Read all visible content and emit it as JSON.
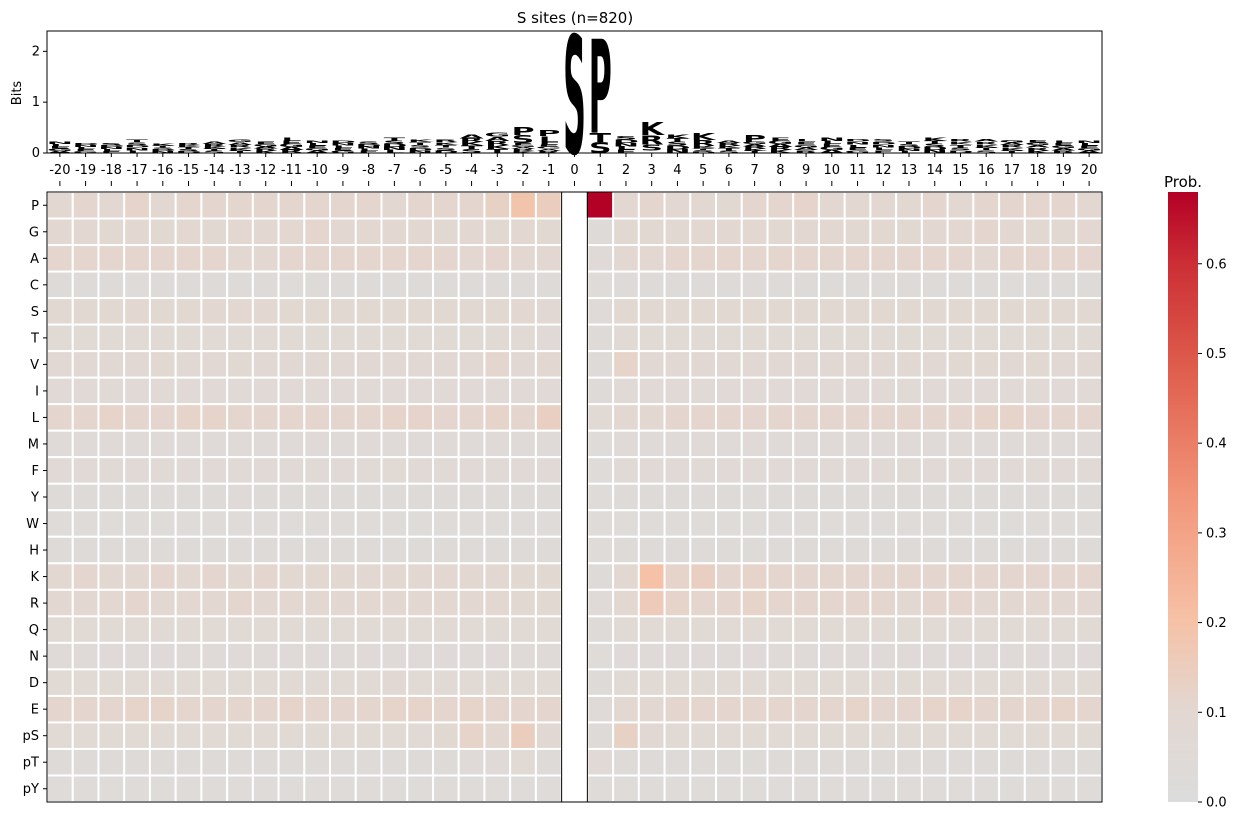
{
  "title": "S sites (n=820)",
  "chart_data": [
    {
      "type": "logo",
      "title": "S sites (n=820)",
      "ylabel": "Bits",
      "ylim": [
        0,
        2.4
      ],
      "yticks": [
        0,
        1,
        2
      ],
      "positions": [
        -20,
        -19,
        -18,
        -17,
        -16,
        -15,
        -14,
        -13,
        -12,
        -11,
        -10,
        -9,
        -8,
        -7,
        -6,
        -5,
        -4,
        -3,
        -2,
        -1,
        0,
        1,
        2,
        3,
        4,
        5,
        6,
        7,
        8,
        9,
        10,
        11,
        12,
        13,
        14,
        15,
        16,
        17,
        18,
        19,
        20
      ],
      "residue_colors": {
        "S": "#8b008b",
        "P": "#000000",
        "K": "#0000ee",
        "R": "#0000ee",
        "A": "#000000",
        "G": "#2e8b57",
        "E": "#e8001c",
        "D": "#e8001c",
        "T": "#cc0044",
        "L": "#ff8c00",
        "N": "#cc00cc"
      },
      "total_bits": [
        0.22,
        0.2,
        0.2,
        0.27,
        0.18,
        0.2,
        0.22,
        0.27,
        0.22,
        0.3,
        0.24,
        0.24,
        0.22,
        0.3,
        0.27,
        0.27,
        0.36,
        0.4,
        0.5,
        0.45,
        2.33,
        2.25,
        0.33,
        0.6,
        0.36,
        0.4,
        0.25,
        0.36,
        0.3,
        0.28,
        0.3,
        0.28,
        0.28,
        0.22,
        0.3,
        0.28,
        0.28,
        0.26,
        0.26,
        0.24,
        0.24
      ],
      "stacks": [
        {
          "position": 0,
          "letters": [
            {
              "letter": "S",
              "bits": 2.33
            }
          ]
        },
        {
          "position": 1,
          "letters": [
            {
              "letter": "S",
              "bits": 0.22
            },
            {
              "letter": "T",
              "bits": 0.18
            },
            {
              "letter": "P",
              "bits": 1.85
            }
          ]
        },
        {
          "position": 3,
          "letters": [
            {
              "letter": "S",
              "bits": 0.12
            },
            {
              "letter": "R",
              "bits": 0.18
            },
            {
              "letter": "K",
              "bits": 0.25
            }
          ]
        },
        {
          "position": 5,
          "letters": [
            {
              "letter": "R",
              "bits": 0.12
            },
            {
              "letter": "K",
              "bits": 0.14
            }
          ]
        },
        {
          "position": 7,
          "letters": [
            {
              "letter": "P",
              "bits": 0.14
            }
          ]
        },
        {
          "position": -2,
          "letters": [
            {
              "letter": "S",
              "bits": 0.15
            },
            {
              "letter": "P",
              "bits": 0.15
            }
          ]
        },
        {
          "position": -1,
          "letters": [
            {
              "letter": "L",
              "bits": 0.12
            },
            {
              "letter": "P",
              "bits": 0.12
            }
          ]
        }
      ]
    },
    {
      "type": "heatmap",
      "colorbar_label": "Prob.",
      "vmin": 0.0,
      "vmax": 0.68,
      "colorbar_ticks": [
        0.0,
        0.1,
        0.2,
        0.3,
        0.4,
        0.5,
        0.6
      ],
      "x": [
        -20,
        -19,
        -18,
        -17,
        -16,
        -15,
        -14,
        -13,
        -12,
        -11,
        -10,
        -9,
        -8,
        -7,
        -6,
        -5,
        -4,
        -3,
        -2,
        -1,
        0,
        1,
        2,
        3,
        4,
        5,
        6,
        7,
        8,
        9,
        10,
        11,
        12,
        13,
        14,
        15,
        16,
        17,
        18,
        19,
        20
      ],
      "y": [
        "P",
        "G",
        "A",
        "C",
        "S",
        "T",
        "V",
        "I",
        "L",
        "M",
        "F",
        "Y",
        "W",
        "H",
        "K",
        "R",
        "Q",
        "N",
        "D",
        "E",
        "pS",
        "pT",
        "pY"
      ],
      "values": [
        [
          0.1,
          0.11,
          0.1,
          0.12,
          0.1,
          0.11,
          0.11,
          0.11,
          0.11,
          0.11,
          0.11,
          0.11,
          0.11,
          0.1,
          0.11,
          0.11,
          0.11,
          0.13,
          0.19,
          0.15,
          null,
          0.68,
          0.1,
          0.11,
          0.1,
          0.1,
          0.09,
          0.11,
          0.11,
          0.12,
          0.1,
          0.1,
          0.1,
          0.1,
          0.11,
          0.1,
          0.11,
          0.11,
          0.11,
          0.11,
          0.1
        ],
        [
          0.1,
          0.1,
          0.09,
          0.1,
          0.09,
          0.1,
          0.09,
          0.1,
          0.1,
          0.1,
          0.11,
          0.1,
          0.1,
          0.1,
          0.1,
          0.09,
          0.1,
          0.09,
          0.1,
          0.09,
          null,
          0.04,
          0.09,
          0.09,
          0.09,
          0.1,
          0.1,
          0.1,
          0.09,
          0.1,
          0.1,
          0.09,
          0.1,
          0.09,
          0.1,
          0.1,
          0.11,
          0.1,
          0.09,
          0.09,
          0.1
        ],
        [
          0.11,
          0.11,
          0.11,
          0.11,
          0.11,
          0.11,
          0.11,
          0.1,
          0.1,
          0.11,
          0.11,
          0.11,
          0.11,
          0.11,
          0.11,
          0.11,
          0.1,
          0.11,
          0.1,
          0.1,
          null,
          0.05,
          0.1,
          0.1,
          0.11,
          0.11,
          0.11,
          0.11,
          0.11,
          0.11,
          0.11,
          0.11,
          0.11,
          0.11,
          0.11,
          0.11,
          0.1,
          0.11,
          0.11,
          0.11,
          0.11
        ],
        [
          0.04,
          0.04,
          0.04,
          0.03,
          0.04,
          0.04,
          0.04,
          0.04,
          0.04,
          0.03,
          0.04,
          0.04,
          0.04,
          0.04,
          0.04,
          0.04,
          0.04,
          0.04,
          0.04,
          0.04,
          null,
          0.03,
          0.04,
          0.04,
          0.04,
          0.04,
          0.04,
          0.04,
          0.04,
          0.04,
          0.04,
          0.04,
          0.04,
          0.04,
          0.04,
          0.04,
          0.04,
          0.03,
          0.04,
          0.04,
          0.04
        ],
        [
          0.09,
          0.09,
          0.09,
          0.1,
          0.09,
          0.09,
          0.1,
          0.1,
          0.1,
          0.09,
          0.09,
          0.09,
          0.09,
          0.09,
          0.09,
          0.09,
          0.09,
          0.09,
          0.1,
          0.08,
          null,
          0.05,
          0.09,
          0.09,
          0.09,
          0.09,
          0.09,
          0.09,
          0.09,
          0.09,
          0.09,
          0.09,
          0.09,
          0.09,
          0.09,
          0.09,
          0.09,
          0.09,
          0.09,
          0.09,
          0.09
        ],
        [
          0.07,
          0.07,
          0.07,
          0.07,
          0.07,
          0.07,
          0.07,
          0.07,
          0.07,
          0.07,
          0.07,
          0.07,
          0.07,
          0.07,
          0.07,
          0.07,
          0.07,
          0.07,
          0.07,
          0.06,
          null,
          0.04,
          0.07,
          0.07,
          0.07,
          0.07,
          0.07,
          0.07,
          0.07,
          0.07,
          0.07,
          0.07,
          0.07,
          0.07,
          0.07,
          0.07,
          0.07,
          0.07,
          0.07,
          0.07,
          0.07
        ],
        [
          0.08,
          0.08,
          0.08,
          0.08,
          0.09,
          0.08,
          0.08,
          0.09,
          0.08,
          0.08,
          0.08,
          0.08,
          0.08,
          0.08,
          0.08,
          0.08,
          0.08,
          0.11,
          0.08,
          0.1,
          null,
          0.04,
          0.12,
          0.08,
          0.08,
          0.08,
          0.08,
          0.08,
          0.08,
          0.08,
          0.08,
          0.08,
          0.08,
          0.08,
          0.08,
          0.09,
          0.09,
          0.08,
          0.09,
          0.08,
          0.08
        ],
        [
          0.06,
          0.06,
          0.06,
          0.06,
          0.06,
          0.06,
          0.06,
          0.06,
          0.06,
          0.06,
          0.06,
          0.06,
          0.06,
          0.06,
          0.06,
          0.06,
          0.06,
          0.06,
          0.06,
          0.06,
          null,
          0.04,
          0.06,
          0.06,
          0.06,
          0.06,
          0.06,
          0.06,
          0.06,
          0.06,
          0.06,
          0.06,
          0.06,
          0.06,
          0.06,
          0.06,
          0.06,
          0.06,
          0.06,
          0.06,
          0.06
        ],
        [
          0.11,
          0.11,
          0.12,
          0.11,
          0.11,
          0.12,
          0.12,
          0.11,
          0.11,
          0.11,
          0.11,
          0.11,
          0.11,
          0.12,
          0.12,
          0.11,
          0.11,
          0.12,
          0.11,
          0.14,
          null,
          0.07,
          0.1,
          0.1,
          0.11,
          0.11,
          0.11,
          0.11,
          0.11,
          0.11,
          0.11,
          0.11,
          0.11,
          0.11,
          0.11,
          0.11,
          0.12,
          0.12,
          0.11,
          0.11,
          0.11
        ],
        [
          0.05,
          0.05,
          0.05,
          0.05,
          0.05,
          0.05,
          0.05,
          0.05,
          0.05,
          0.05,
          0.05,
          0.05,
          0.05,
          0.05,
          0.05,
          0.05,
          0.05,
          0.05,
          0.05,
          0.05,
          null,
          0.03,
          0.05,
          0.05,
          0.05,
          0.05,
          0.05,
          0.05,
          0.05,
          0.05,
          0.05,
          0.05,
          0.05,
          0.05,
          0.05,
          0.05,
          0.05,
          0.05,
          0.05,
          0.05,
          0.05
        ],
        [
          0.06,
          0.06,
          0.06,
          0.06,
          0.06,
          0.06,
          0.06,
          0.06,
          0.06,
          0.06,
          0.06,
          0.06,
          0.06,
          0.07,
          0.06,
          0.06,
          0.06,
          0.06,
          0.06,
          0.06,
          null,
          0.03,
          0.06,
          0.06,
          0.06,
          0.06,
          0.06,
          0.06,
          0.06,
          0.06,
          0.06,
          0.06,
          0.06,
          0.06,
          0.06,
          0.06,
          0.06,
          0.06,
          0.06,
          0.06,
          0.06
        ],
        [
          0.04,
          0.04,
          0.04,
          0.04,
          0.04,
          0.04,
          0.04,
          0.05,
          0.04,
          0.04,
          0.04,
          0.04,
          0.04,
          0.04,
          0.04,
          0.04,
          0.04,
          0.04,
          0.04,
          0.04,
          null,
          0.03,
          0.04,
          0.04,
          0.04,
          0.04,
          0.04,
          0.04,
          0.04,
          0.04,
          0.04,
          0.04,
          0.04,
          0.04,
          0.04,
          0.04,
          0.04,
          0.04,
          0.04,
          0.04,
          0.04
        ],
        [
          0.03,
          0.03,
          0.03,
          0.03,
          0.03,
          0.03,
          0.03,
          0.03,
          0.03,
          0.03,
          0.03,
          0.03,
          0.03,
          0.03,
          0.03,
          0.03,
          0.03,
          0.03,
          0.03,
          0.03,
          null,
          0.03,
          0.03,
          0.03,
          0.03,
          0.03,
          0.03,
          0.03,
          0.03,
          0.03,
          0.03,
          0.03,
          0.03,
          0.03,
          0.03,
          0.03,
          0.03,
          0.03,
          0.03,
          0.03,
          0.03
        ],
        [
          0.04,
          0.04,
          0.04,
          0.04,
          0.04,
          0.04,
          0.04,
          0.04,
          0.04,
          0.04,
          0.04,
          0.04,
          0.04,
          0.04,
          0.04,
          0.04,
          0.04,
          0.04,
          0.04,
          0.04,
          null,
          0.03,
          0.04,
          0.04,
          0.04,
          0.04,
          0.04,
          0.04,
          0.04,
          0.04,
          0.04,
          0.04,
          0.04,
          0.04,
          0.04,
          0.04,
          0.04,
          0.04,
          0.04,
          0.04,
          0.04
        ],
        [
          0.1,
          0.11,
          0.1,
          0.1,
          0.11,
          0.1,
          0.11,
          0.1,
          0.11,
          0.1,
          0.1,
          0.1,
          0.1,
          0.1,
          0.1,
          0.1,
          0.1,
          0.1,
          0.09,
          0.09,
          null,
          0.04,
          0.1,
          0.2,
          0.12,
          0.14,
          0.11,
          0.12,
          0.11,
          0.11,
          0.11,
          0.11,
          0.11,
          0.11,
          0.11,
          0.11,
          0.11,
          0.11,
          0.11,
          0.11,
          0.11
        ],
        [
          0.1,
          0.1,
          0.1,
          0.11,
          0.1,
          0.1,
          0.1,
          0.11,
          0.1,
          0.1,
          0.1,
          0.1,
          0.1,
          0.1,
          0.1,
          0.1,
          0.1,
          0.1,
          0.09,
          0.09,
          null,
          0.05,
          0.1,
          0.16,
          0.12,
          0.11,
          0.11,
          0.12,
          0.11,
          0.11,
          0.11,
          0.11,
          0.11,
          0.1,
          0.11,
          0.11,
          0.1,
          0.1,
          0.1,
          0.1,
          0.1
        ],
        [
          0.07,
          0.07,
          0.07,
          0.07,
          0.07,
          0.07,
          0.07,
          0.07,
          0.07,
          0.07,
          0.07,
          0.07,
          0.07,
          0.07,
          0.07,
          0.07,
          0.07,
          0.07,
          0.07,
          0.07,
          null,
          0.04,
          0.07,
          0.07,
          0.07,
          0.07,
          0.07,
          0.07,
          0.07,
          0.07,
          0.07,
          0.07,
          0.07,
          0.07,
          0.07,
          0.07,
          0.07,
          0.07,
          0.07,
          0.07,
          0.07
        ],
        [
          0.05,
          0.05,
          0.05,
          0.05,
          0.05,
          0.05,
          0.05,
          0.05,
          0.05,
          0.05,
          0.05,
          0.05,
          0.05,
          0.05,
          0.05,
          0.05,
          0.05,
          0.05,
          0.05,
          0.05,
          null,
          0.03,
          0.05,
          0.05,
          0.05,
          0.05,
          0.05,
          0.05,
          0.05,
          0.05,
          0.05,
          0.05,
          0.05,
          0.05,
          0.05,
          0.05,
          0.05,
          0.05,
          0.05,
          0.05,
          0.05
        ],
        [
          0.07,
          0.07,
          0.07,
          0.07,
          0.07,
          0.07,
          0.07,
          0.07,
          0.07,
          0.07,
          0.07,
          0.07,
          0.07,
          0.08,
          0.07,
          0.07,
          0.07,
          0.07,
          0.07,
          0.07,
          null,
          0.04,
          0.07,
          0.07,
          0.07,
          0.07,
          0.07,
          0.07,
          0.07,
          0.07,
          0.07,
          0.07,
          0.07,
          0.07,
          0.07,
          0.07,
          0.07,
          0.07,
          0.07,
          0.07,
          0.07
        ],
        [
          0.11,
          0.11,
          0.11,
          0.12,
          0.12,
          0.11,
          0.11,
          0.11,
          0.11,
          0.12,
          0.11,
          0.11,
          0.11,
          0.12,
          0.12,
          0.11,
          0.12,
          0.11,
          0.11,
          0.11,
          null,
          0.05,
          0.1,
          0.1,
          0.11,
          0.11,
          0.11,
          0.11,
          0.11,
          0.11,
          0.11,
          0.12,
          0.11,
          0.11,
          0.12,
          0.12,
          0.11,
          0.11,
          0.11,
          0.12,
          0.11
        ],
        [
          0.07,
          0.07,
          0.07,
          0.07,
          0.07,
          0.07,
          0.07,
          0.07,
          0.07,
          0.07,
          0.07,
          0.07,
          0.07,
          0.07,
          0.07,
          0.09,
          0.12,
          0.1,
          0.15,
          0.08,
          null,
          0.04,
          0.13,
          0.08,
          0.07,
          0.07,
          0.07,
          0.07,
          0.07,
          0.07,
          0.07,
          0.07,
          0.07,
          0.07,
          0.07,
          0.07,
          0.07,
          0.07,
          0.07,
          0.07,
          0.07
        ],
        [
          0.04,
          0.04,
          0.04,
          0.04,
          0.04,
          0.04,
          0.04,
          0.04,
          0.04,
          0.04,
          0.04,
          0.04,
          0.04,
          0.04,
          0.04,
          0.04,
          0.05,
          0.05,
          0.07,
          0.04,
          null,
          0.06,
          0.04,
          0.04,
          0.04,
          0.04,
          0.04,
          0.04,
          0.04,
          0.04,
          0.04,
          0.04,
          0.04,
          0.04,
          0.04,
          0.04,
          0.04,
          0.04,
          0.04,
          0.04,
          0.04
        ],
        [
          0.03,
          0.03,
          0.03,
          0.03,
          0.03,
          0.03,
          0.03,
          0.03,
          0.03,
          0.03,
          0.03,
          0.03,
          0.03,
          0.03,
          0.03,
          0.03,
          0.03,
          0.03,
          0.03,
          0.03,
          null,
          0.03,
          0.03,
          0.03,
          0.03,
          0.03,
          0.03,
          0.03,
          0.03,
          0.03,
          0.03,
          0.03,
          0.03,
          0.03,
          0.03,
          0.03,
          0.03,
          0.03,
          0.03,
          0.03,
          0.03
        ]
      ]
    }
  ]
}
